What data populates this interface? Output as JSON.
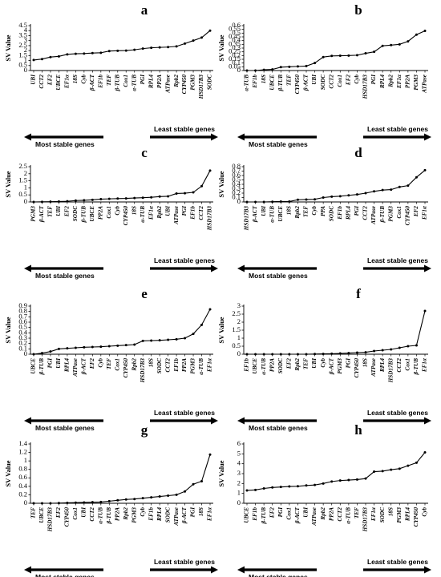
{
  "chart_data": [
    {
      "panel": "a",
      "type": "line",
      "ylabel": "SV Value",
      "ylim": [
        0,
        4.5
      ],
      "yticks": [
        "0",
        "0.5",
        "1",
        "1.5",
        "2",
        "2.5",
        "3",
        "3.5",
        "4",
        "4.5"
      ],
      "categories": [
        "UBI",
        "CCT2",
        "EF2",
        "UBCE",
        "EF1α",
        "18S",
        "Cyb",
        "β-ACT",
        "EF1b",
        "TEF",
        "β-TUB",
        "Cox1",
        "α-TUB",
        "PGI",
        "RPL4",
        "PP2A",
        "ATPase",
        "Rpb2",
        "CYP450",
        "PGM3",
        "HSD17B3",
        "SODC"
      ],
      "values": [
        1.05,
        1.15,
        1.35,
        1.42,
        1.62,
        1.68,
        1.7,
        1.75,
        1.78,
        1.95,
        1.98,
        2.0,
        2.08,
        2.2,
        2.28,
        2.32,
        2.35,
        2.42,
        2.7,
        3.0,
        3.3,
        4.0
      ],
      "arrow_left": "Most stable genes",
      "arrow_right": "Least stable genes"
    },
    {
      "panel": "b",
      "type": "line",
      "ylabel": "SV Value",
      "ylim": [
        0,
        0.6
      ],
      "yticks": [
        "0",
        "0.05",
        "0.1",
        "0.15",
        "0.2",
        "0.25",
        "0.3",
        "0.35",
        "0.4",
        "0.45",
        "0.5",
        "0.55",
        "0.6"
      ],
      "categories": [
        "α-TUB",
        "EF1b",
        "18S",
        "UBCE",
        "β-TUB",
        "TEF",
        "CYP450",
        "β-ACT",
        "UBI",
        "SODC",
        "CCT2",
        "Cox1",
        "EF2",
        "Cyb",
        "HSD17B3",
        "PGI",
        "RPL4",
        "Rpb2",
        "EF1α",
        "PP2A",
        "PGM3",
        "ATPase"
      ],
      "values": [
        0.0,
        0.0,
        0.01,
        0.015,
        0.045,
        0.05,
        0.055,
        0.06,
        0.1,
        0.18,
        0.195,
        0.198,
        0.2,
        0.205,
        0.23,
        0.25,
        0.33,
        0.34,
        0.35,
        0.39,
        0.48,
        0.53
      ],
      "arrow_left": "Most stable genes",
      "arrow_right": "Least stable genes"
    },
    {
      "panel": "c",
      "type": "line",
      "ylabel": "SV Value",
      "ylim": [
        0,
        2.5
      ],
      "yticks": [
        "0",
        "0.5",
        "1",
        "1.5",
        "2",
        "2.5"
      ],
      "categories": [
        "PGM3",
        "β-ACT",
        "TEF",
        "UBI",
        "EF2",
        "SODC",
        "β-TUB",
        "UBCE",
        "PP2A",
        "Cox1",
        "Cyb",
        "CYP450",
        "18S",
        "α-TUB",
        "EF1α",
        "Rpb2",
        "UBI",
        "ATPase",
        "PGI",
        "EF1b",
        "CCT2",
        "HSD17B3"
      ],
      "values": [
        0.0,
        0.01,
        0.02,
        0.03,
        0.05,
        0.1,
        0.12,
        0.15,
        0.2,
        0.22,
        0.24,
        0.25,
        0.28,
        0.3,
        0.33,
        0.38,
        0.4,
        0.6,
        0.62,
        0.68,
        1.12,
        2.22
      ],
      "arrow_left": "Most stable genes",
      "arrow_right": "Least stable genes"
    },
    {
      "panel": "d",
      "type": "line",
      "ylabel": "SV Value",
      "ylim": [
        0,
        0.8
      ],
      "yticks": [
        "0",
        "0.1",
        "0.2",
        "0.3",
        "0.4",
        "0.5",
        "0.6",
        "0.7",
        "0.8"
      ],
      "categories": [
        "HSD17B3",
        "β-ACT",
        "UBI",
        "α-TUB",
        "UBCE",
        "18S",
        "Rpb2",
        "TEF",
        "Cyb",
        "PPA",
        "SODC",
        "EF1b",
        "RPL4",
        "PGI",
        "CCT2",
        "ATPase",
        "β-TUB",
        "PGM3",
        "Cox1",
        "CYP450",
        "EF2",
        "EF1α"
      ],
      "values": [
        0.0,
        0.0,
        0.0,
        0.005,
        0.01,
        0.01,
        0.05,
        0.055,
        0.06,
        0.1,
        0.12,
        0.13,
        0.15,
        0.17,
        0.2,
        0.24,
        0.27,
        0.28,
        0.34,
        0.37,
        0.56,
        0.72
      ],
      "arrow_left": "Most stable genes",
      "arrow_right": "Least stable genes"
    },
    {
      "panel": "e",
      "type": "line",
      "ylabel": "SV Value",
      "ylim": [
        0,
        0.9
      ],
      "yticks": [
        "0",
        "0.1",
        "0.2",
        "0.3",
        "0.4",
        "0.5",
        "0.6",
        "0.7",
        "0.8",
        "0.9"
      ],
      "categories": [
        "UBCE",
        "β-TUB",
        "PGI",
        "UBI",
        "RPL4",
        "ATPase",
        "β-ACT",
        "EF2",
        "Cyb",
        "TEF",
        "Cox1",
        "CYP450",
        "Rpb2",
        "HSD17B3",
        "18S",
        "SODC",
        "CCT2",
        "EF1b",
        "PP2A",
        "PGM3",
        "α-TUB",
        "EF1α"
      ],
      "values": [
        0.0,
        0.02,
        0.05,
        0.1,
        0.11,
        0.12,
        0.13,
        0.135,
        0.14,
        0.15,
        0.16,
        0.17,
        0.18,
        0.25,
        0.255,
        0.26,
        0.27,
        0.28,
        0.3,
        0.38,
        0.55,
        0.84
      ],
      "arrow_left": "Most stable genes",
      "arrow_right": "Least stable genes"
    },
    {
      "panel": "f",
      "type": "line",
      "ylabel": "SV Value",
      "ylim": [
        0,
        3
      ],
      "yticks": [
        "0",
        "0.5",
        "1",
        "1.5",
        "2",
        "2.5",
        "3"
      ],
      "categories": [
        "EF1b",
        "UBCE",
        "α-TUB",
        "PP2A",
        "SODC",
        "EF2",
        "Rpb2",
        "TEF",
        "UBI",
        "Cyb",
        "β-ACT",
        "PGM3",
        "PGI",
        "CYP450",
        "18S",
        "ATPase",
        "RPL4",
        "HSD17B3",
        "CCT2",
        "Cox1",
        "β-TUB",
        "EF1α"
      ],
      "values": [
        0.0,
        0.0,
        0.0,
        0.0,
        0.0,
        0.0,
        0.0,
        0.0,
        0.01,
        0.02,
        0.03,
        0.05,
        0.07,
        0.1,
        0.12,
        0.2,
        0.25,
        0.3,
        0.4,
        0.5,
        0.55,
        2.7
      ],
      "arrow_left": "Most stable genes",
      "arrow_right": "Least stable genes"
    },
    {
      "panel": "g",
      "type": "line",
      "ylabel": "SV Value",
      "ylim": [
        0,
        1.4
      ],
      "yticks": [
        "0",
        "0.2",
        "0.4",
        "0.6",
        "0.8",
        "1",
        "1.2",
        "1.4"
      ],
      "categories": [
        "TEF",
        "UBCE",
        "HSD17B3",
        "EF2",
        "CYP450",
        "Cox1",
        "UBI",
        "CCT2",
        "α-TUB",
        "β-TUB",
        "PP2A",
        "Rpb2",
        "PGM3",
        "Cyb",
        "EF1b",
        "RPL4",
        "SODC",
        "ATPase",
        "β-ACT",
        "PGI",
        "18S",
        "EF1α"
      ],
      "values": [
        0.0,
        0.0,
        0.0,
        0.005,
        0.01,
        0.015,
        0.02,
        0.025,
        0.03,
        0.05,
        0.07,
        0.09,
        0.1,
        0.12,
        0.14,
        0.16,
        0.18,
        0.2,
        0.28,
        0.45,
        0.52,
        1.15
      ],
      "arrow_left": "Most stable genes",
      "arrow_right": "Least stable genes"
    },
    {
      "panel": "h",
      "type": "line",
      "ylabel": "SV Value",
      "ylim": [
        0,
        6
      ],
      "yticks": [
        "0",
        "1",
        "2",
        "3",
        "4",
        "5",
        "6"
      ],
      "categories": [
        "UBCE",
        "EF1b",
        "β-TUB",
        "EF2",
        "PGI",
        "Cox1",
        "β-ACT",
        "UBI",
        "ATPase",
        "Rpb2",
        "PP2A",
        "CCT2",
        "α-TUB",
        "TEF",
        "HSD17B3",
        "EF1α",
        "SODC",
        "18S",
        "PGM3",
        "RPL4",
        "CYP450",
        "Cyb"
      ],
      "values": [
        1.3,
        1.35,
        1.5,
        1.6,
        1.65,
        1.7,
        1.72,
        1.8,
        1.85,
        2.0,
        2.2,
        2.3,
        2.35,
        2.4,
        2.5,
        3.2,
        3.25,
        3.4,
        3.5,
        3.8,
        4.1,
        5.15
      ],
      "arrow_left": "Most stable genes",
      "arrow_right": "Least stable genes"
    }
  ]
}
